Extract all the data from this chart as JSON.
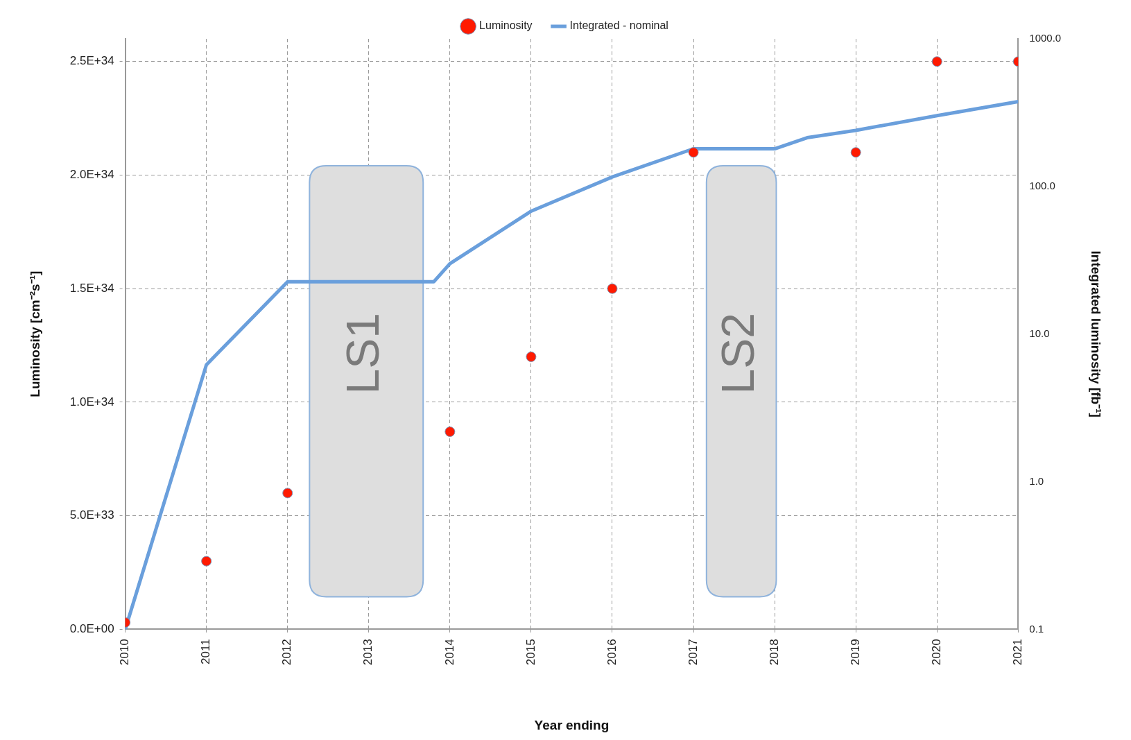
{
  "chart_data": {
    "type": "scatter",
    "xlabel": "Year ending",
    "ylabel": "Luminosity [cm⁻²s⁻¹]",
    "y2label": "Integrated luminosity [fb⁻¹]",
    "xlim": [
      2010,
      2021
    ],
    "xticks": [
      2010,
      2011,
      2012,
      2013,
      2014,
      2015,
      2016,
      2017,
      2018,
      2019,
      2020,
      2021
    ],
    "ylim": [
      0,
      2.6e+34
    ],
    "yticks": [
      {
        "value": 0,
        "label": "0.0E+00"
      },
      {
        "value": 5e+33,
        "label": "5.0E+33"
      },
      {
        "value": 1e+34,
        "label": "1.0E+34"
      },
      {
        "value": 1.5e+34,
        "label": "1.5E+34"
      },
      {
        "value": 2e+34,
        "label": "2.0E+34"
      },
      {
        "value": 2.5e+34,
        "label": "2.5E+34"
      }
    ],
    "y2lim": [
      0.1,
      1000
    ],
    "y2ticks": [
      {
        "value": 0.1,
        "label": "0.1"
      },
      {
        "value": 1,
        "label": "1.0"
      },
      {
        "value": 10,
        "label": "10.0"
      },
      {
        "value": 100,
        "label": "100.0"
      },
      {
        "value": 1000,
        "label": "1000.0"
      }
    ],
    "log": "y2",
    "grid": true,
    "legend": "top",
    "series": [
      {
        "name": "Luminosity",
        "color": "#ff1a00",
        "marker": "circle",
        "x": [
          2010,
          2011,
          2012,
          2014,
          2015,
          2016,
          2017,
          2019,
          2020,
          2021
        ],
        "values": [
          3e+32,
          3e+33,
          6e+33,
          8.7e+33,
          1.2e+34,
          1.5e+34,
          2.1e+34,
          2.1e+34,
          2.5e+34,
          2.5e+34
        ]
      },
      {
        "name": "Integrated - nominal",
        "type": "line",
        "axis": "y2",
        "color": "#6a9fdc",
        "marker": "none",
        "x": [
          2010,
          2011,
          2012,
          2013.8,
          2014,
          2015,
          2016,
          2017,
          2018,
          2018.4,
          2019,
          2020,
          2021
        ],
        "values": [
          0.1,
          6.2,
          22.6,
          22.6,
          30,
          68,
          116,
          180,
          180,
          214,
          240,
          302,
          376
        ]
      }
    ],
    "bands": [
      {
        "axis": "x",
        "from": 2012.27,
        "to": 2013.67,
        "label": "LS1",
        "color": "#dedede"
      },
      {
        "axis": "x",
        "from": 2017.16,
        "to": 2018.02,
        "label": "LS2",
        "color": "#dedede"
      }
    ]
  }
}
